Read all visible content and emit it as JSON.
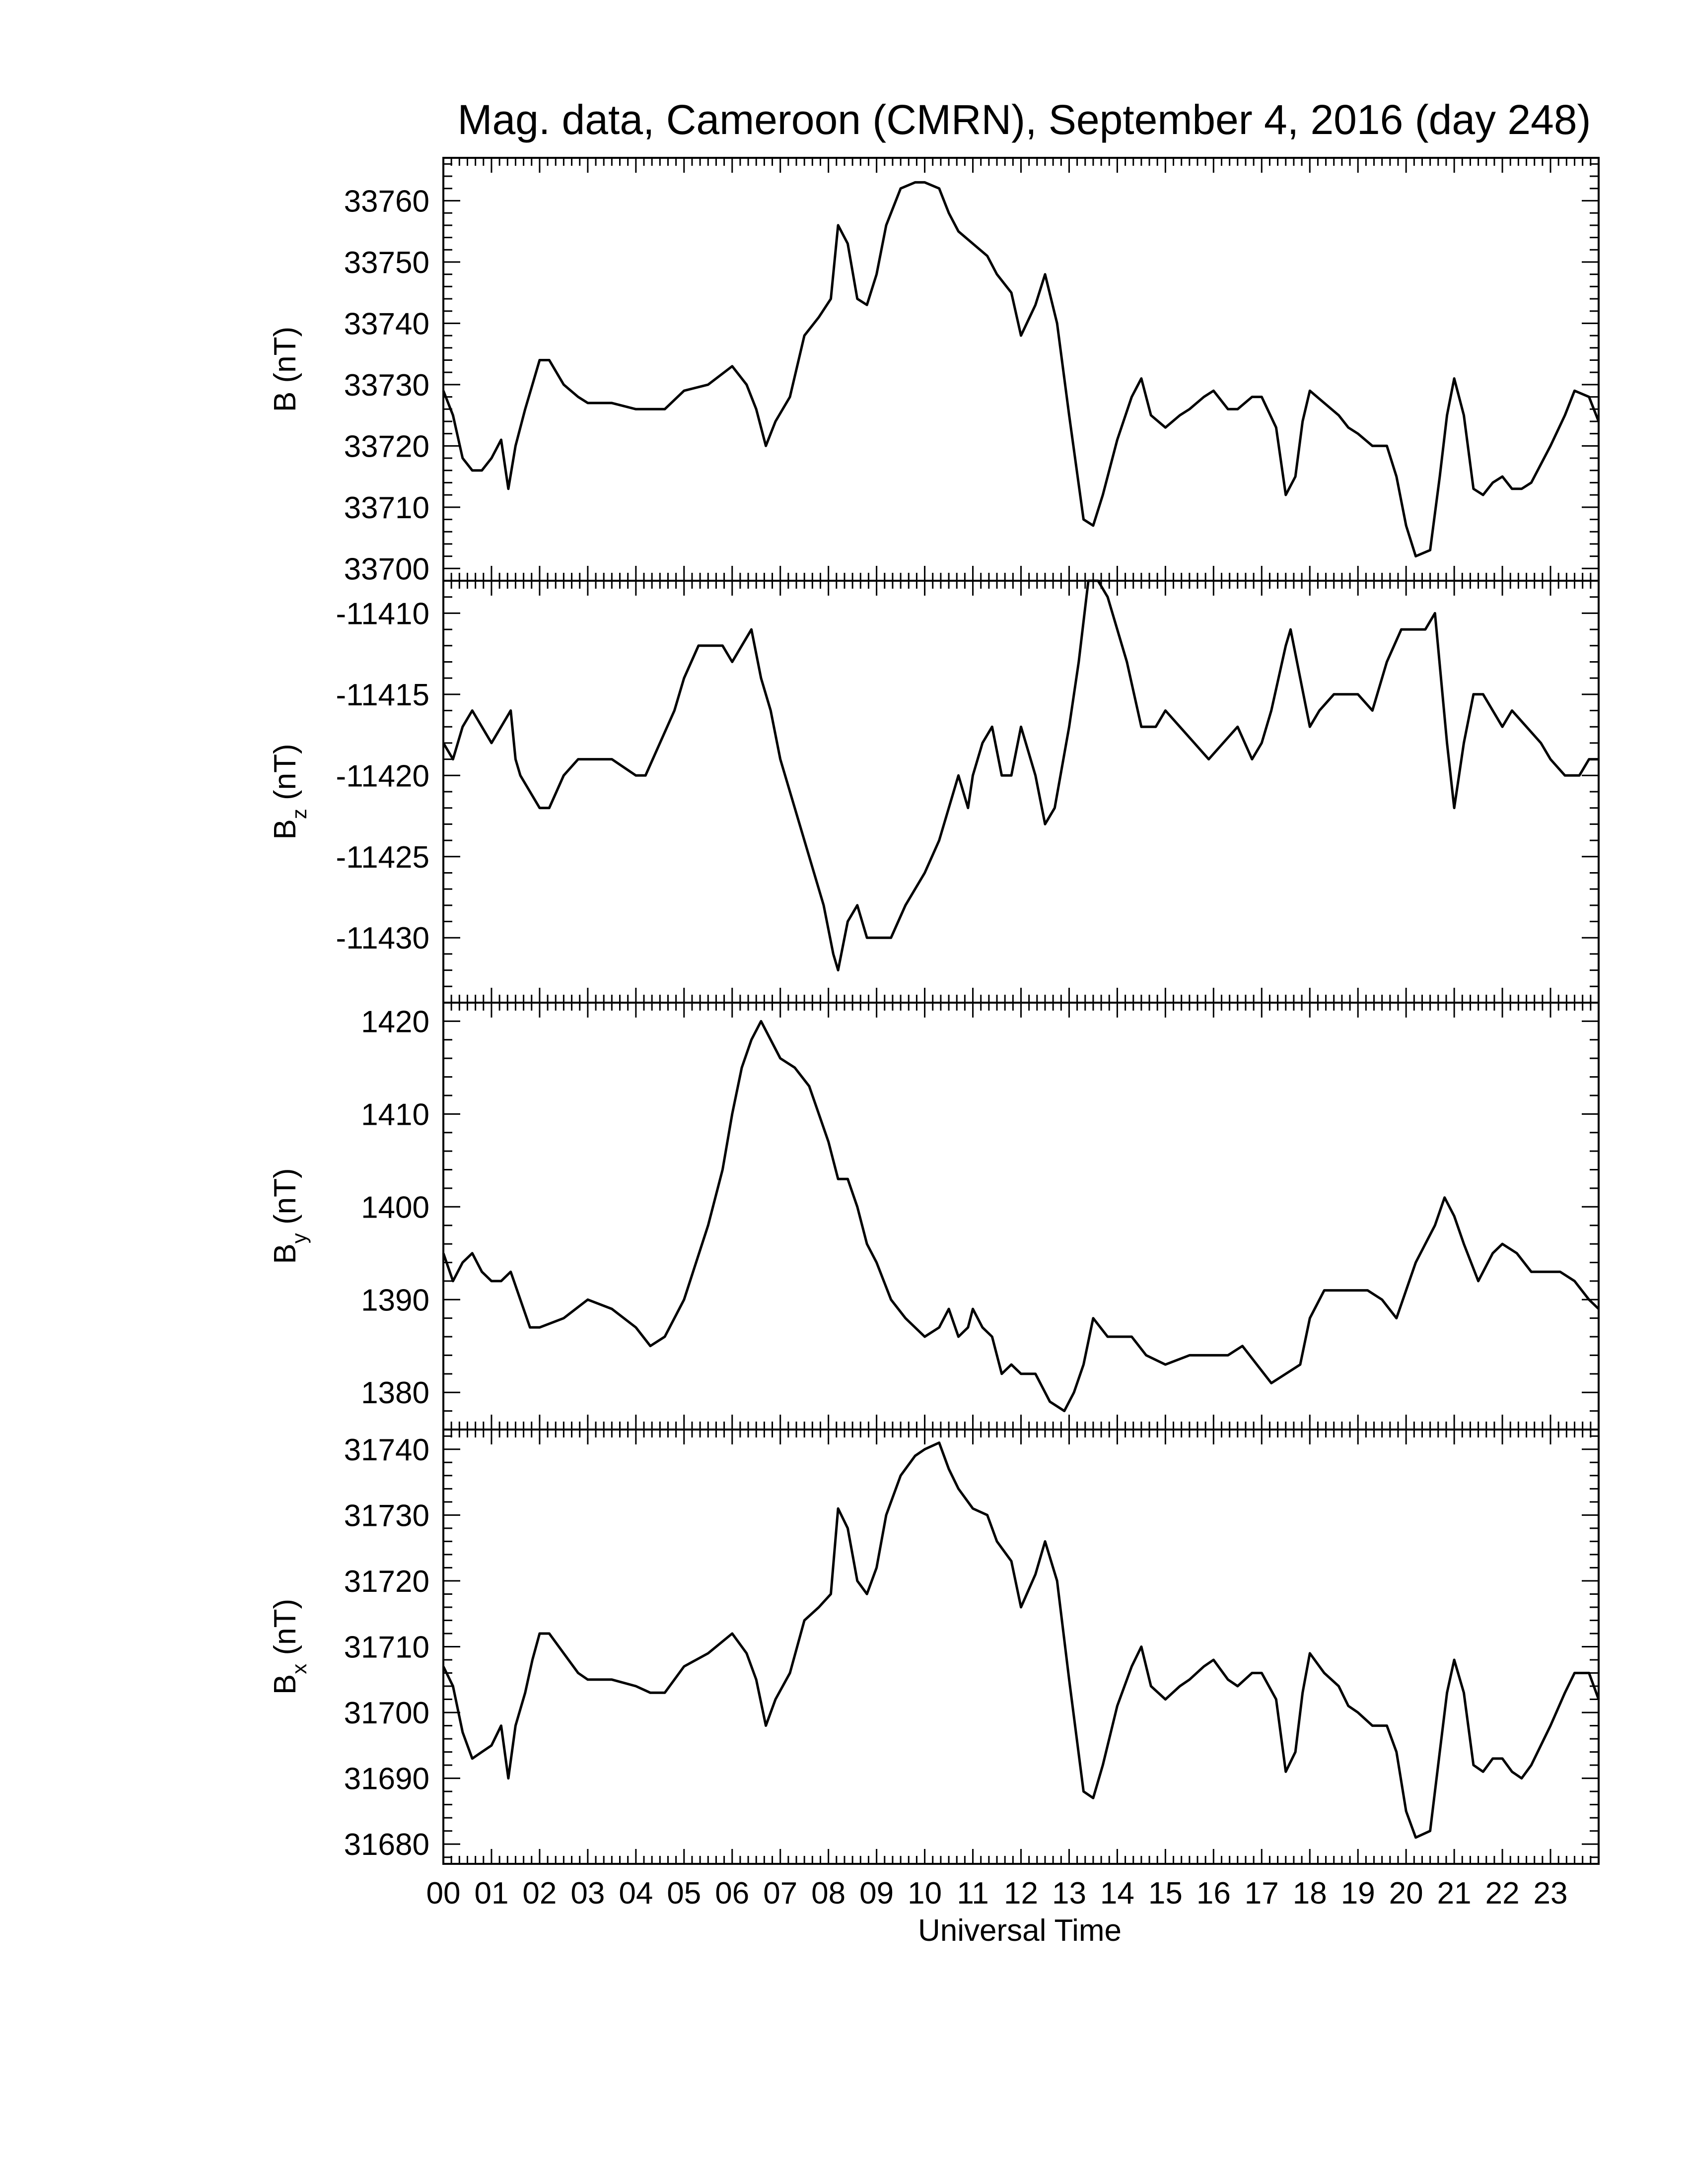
{
  "title": "Mag. data, Cameroon (CMRN), September 4, 2016 (day 248)",
  "xlabel": "Universal Time",
  "x_ticks": [
    "00",
    "01",
    "02",
    "03",
    "04",
    "05",
    "06",
    "07",
    "08",
    "09",
    "10",
    "11",
    "12",
    "13",
    "14",
    "15",
    "16",
    "17",
    "18",
    "19",
    "20",
    "21",
    "22",
    "23"
  ],
  "chart_data": [
    {
      "type": "line",
      "ylabel": "B (nT)",
      "ylim": [
        33698,
        33767
      ],
      "yticks": [
        33700,
        33710,
        33720,
        33730,
        33740,
        33750,
        33760
      ],
      "series": [
        {
          "x": [
            0,
            0.2,
            0.4,
            0.6,
            0.8,
            1.0,
            1.2,
            1.35,
            1.5,
            1.7,
            1.85,
            2.0,
            2.2,
            2.5,
            2.8,
            3.0,
            3.5,
            4.0,
            4.3,
            4.6,
            5.0,
            5.5,
            6.0,
            6.3,
            6.5,
            6.7,
            6.9,
            7.2,
            7.5,
            7.8,
            8.05,
            8.2,
            8.4,
            8.6,
            8.8,
            9.0,
            9.2,
            9.5,
            9.8,
            10.0,
            10.3,
            10.5,
            10.7,
            11.0,
            11.3,
            11.5,
            11.8,
            12.0,
            12.3,
            12.5,
            12.75,
            13.0,
            13.3,
            13.5,
            13.7,
            14.0,
            14.3,
            14.5,
            14.7,
            15.0,
            15.3,
            15.5,
            15.8,
            16.0,
            16.3,
            16.5,
            16.8,
            17.0,
            17.3,
            17.5,
            17.7,
            17.85,
            18.0,
            18.3,
            18.6,
            18.8,
            19.0,
            19.3,
            19.6,
            19.8,
            20.0,
            20.2,
            20.5,
            20.7,
            20.85,
            21.0,
            21.2,
            21.4,
            21.6,
            21.8,
            22.0,
            22.2,
            22.4,
            22.6,
            23.0,
            23.3,
            23.5,
            23.8,
            24.0
          ],
          "values": [
            33729,
            33725,
            33718,
            33716,
            33716,
            33718,
            33721,
            33713,
            33720,
            33726,
            33730,
            33734,
            33734,
            33730,
            33728,
            33727,
            33727,
            33726,
            33726,
            33726,
            33729,
            33730,
            33733,
            33730,
            33726,
            33720,
            33724,
            33728,
            33738,
            33741,
            33744,
            33756,
            33753,
            33744,
            33743,
            33748,
            33756,
            33762,
            33763,
            33763,
            33762,
            33758,
            33755,
            33753,
            33751,
            33748,
            33745,
            33738,
            33743,
            33748,
            33740,
            33725,
            33708,
            33707,
            33712,
            33721,
            33728,
            33731,
            33725,
            33723,
            33725,
            33726,
            33728,
            33729,
            33726,
            33726,
            33728,
            33728,
            33723,
            33712,
            33715,
            33724,
            33729,
            33727,
            33725,
            33723,
            33722,
            33720,
            33720,
            33715,
            33707,
            33702,
            33703,
            33715,
            33725,
            33731,
            33725,
            33713,
            33712,
            33714,
            33715,
            33713,
            33713,
            33714,
            33720,
            33725,
            33729,
            33728,
            33724
          ]
        }
      ]
    },
    {
      "type": "line",
      "ylabel": "B",
      "ylabel_sub": "z",
      "ylabel_unit": "(nT)",
      "ylim": [
        -11434,
        -11408
      ],
      "yticks": [
        -11410,
        -11415,
        -11420,
        -11425,
        -11430
      ],
      "series": [
        {
          "x": [
            0,
            0.2,
            0.4,
            0.6,
            0.8,
            1.0,
            1.2,
            1.4,
            1.5,
            1.6,
            1.8,
            2.0,
            2.2,
            2.5,
            2.8,
            3.0,
            3.5,
            4.0,
            4.2,
            4.5,
            4.8,
            5.0,
            5.3,
            5.5,
            5.8,
            6.0,
            6.2,
            6.4,
            6.6,
            6.8,
            7.0,
            7.3,
            7.6,
            7.9,
            8.1,
            8.2,
            8.4,
            8.6,
            8.8,
            9.0,
            9.3,
            9.6,
            10.0,
            10.3,
            10.5,
            10.7,
            10.9,
            11.0,
            11.2,
            11.4,
            11.6,
            11.8,
            12.0,
            12.3,
            12.5,
            12.7,
            13.0,
            13.2,
            13.4,
            13.6,
            13.8,
            14.0,
            14.2,
            14.5,
            14.8,
            15.0,
            15.3,
            15.6,
            15.9,
            16.2,
            16.5,
            16.8,
            17.0,
            17.2,
            17.5,
            17.6,
            17.8,
            18.0,
            18.2,
            18.5,
            18.8,
            19.0,
            19.3,
            19.6,
            19.9,
            20.2,
            20.4,
            20.6,
            20.85,
            21.0,
            21.2,
            21.4,
            21.6,
            21.8,
            22.0,
            22.2,
            22.5,
            22.8,
            23.0,
            23.3,
            23.6,
            23.8,
            24.0
          ],
          "values": [
            -11418,
            -11419,
            -11417,
            -11416,
            -11417,
            -11418,
            -11417,
            -11416,
            -11419,
            -11420,
            -11421,
            -11422,
            -11422,
            -11420,
            -11419,
            -11419,
            -11419,
            -11420,
            -11420,
            -11418,
            -11416,
            -11414,
            -11412,
            -11412,
            -11412,
            -11413,
            -11412,
            -11411,
            -11414,
            -11416,
            -11419,
            -11422,
            -11425,
            -11428,
            -11431,
            -11432,
            -11429,
            -11428,
            -11430,
            -11430,
            -11430,
            -11428,
            -11426,
            -11424,
            -11422,
            -11420,
            -11422,
            -11420,
            -11418,
            -11417,
            -11420,
            -11420,
            -11417,
            -11420,
            -11423,
            -11422,
            -11417,
            -11413,
            -11408,
            -11408,
            -11409,
            -11411,
            -11413,
            -11417,
            -11417,
            -11416,
            -11417,
            -11418,
            -11419,
            -11418,
            -11417,
            -11419,
            -11418,
            -11416,
            -11412,
            -11411,
            -11414,
            -11417,
            -11416,
            -11415,
            -11415,
            -11415,
            -11416,
            -11413,
            -11411,
            -11411,
            -11411,
            -11410,
            -11418,
            -11422,
            -11418,
            -11415,
            -11415,
            -11416,
            -11417,
            -11416,
            -11417,
            -11418,
            -11419,
            -11420,
            -11420,
            -11419,
            -11419
          ]
        }
      ]
    },
    {
      "type": "line",
      "ylabel": "B",
      "ylabel_sub": "y",
      "ylabel_unit": "(nT)",
      "ylim": [
        1376,
        1422
      ],
      "yticks": [
        1380,
        1390,
        1400,
        1410,
        1420
      ],
      "series": [
        {
          "x": [
            0,
            0.2,
            0.4,
            0.6,
            0.8,
            1.0,
            1.2,
            1.4,
            1.6,
            1.8,
            2.0,
            2.5,
            3.0,
            3.5,
            4.0,
            4.3,
            4.6,
            5.0,
            5.5,
            5.8,
            6.0,
            6.2,
            6.4,
            6.6,
            6.8,
            7.0,
            7.3,
            7.6,
            7.8,
            8.0,
            8.2,
            8.4,
            8.6,
            8.8,
            9.0,
            9.3,
            9.6,
            10.0,
            10.3,
            10.5,
            10.7,
            10.9,
            11.0,
            11.2,
            11.4,
            11.6,
            11.8,
            12.0,
            12.3,
            12.6,
            12.9,
            13.1,
            13.3,
            13.5,
            13.8,
            14.0,
            14.3,
            14.6,
            15.0,
            15.5,
            16.0,
            16.3,
            16.6,
            16.9,
            17.2,
            17.5,
            17.8,
            18.0,
            18.3,
            18.6,
            19.0,
            19.2,
            19.5,
            19.8,
            20.0,
            20.2,
            20.4,
            20.6,
            20.8,
            21.0,
            21.2,
            21.5,
            21.8,
            22.0,
            22.3,
            22.6,
            22.9,
            23.2,
            23.5,
            23.8,
            24.0
          ],
          "values": [
            1395,
            1392,
            1394,
            1395,
            1393,
            1392,
            1392,
            1393,
            1390,
            1387,
            1387,
            1388,
            1390,
            1389,
            1387,
            1385,
            1386,
            1390,
            1398,
            1404,
            1410,
            1415,
            1418,
            1420,
            1418,
            1416,
            1415,
            1413,
            1410,
            1407,
            1403,
            1403,
            1400,
            1396,
            1394,
            1390,
            1388,
            1386,
            1387,
            1389,
            1386,
            1387,
            1389,
            1387,
            1386,
            1382,
            1383,
            1382,
            1382,
            1379,
            1378,
            1380,
            1383,
            1388,
            1386,
            1386,
            1386,
            1384,
            1383,
            1384,
            1384,
            1384,
            1385,
            1383,
            1381,
            1382,
            1383,
            1388,
            1391,
            1391,
            1391,
            1391,
            1390,
            1388,
            1391,
            1394,
            1396,
            1398,
            1401,
            1399,
            1396,
            1392,
            1395,
            1396,
            1395,
            1393,
            1393,
            1393,
            1392,
            1390,
            1389
          ]
        }
      ]
    },
    {
      "type": "line",
      "ylabel": "B",
      "ylabel_sub": "x",
      "ylabel_unit": "(nT)",
      "ylim": [
        31677,
        31743
      ],
      "yticks": [
        31680,
        31690,
        31700,
        31710,
        31720,
        31730,
        31740
      ],
      "series": [
        {
          "x": [
            0,
            0.2,
            0.4,
            0.6,
            0.8,
            1.0,
            1.2,
            1.35,
            1.5,
            1.7,
            1.85,
            2.0,
            2.2,
            2.5,
            2.8,
            3.0,
            3.5,
            4.0,
            4.3,
            4.6,
            5.0,
            5.5,
            6.0,
            6.3,
            6.5,
            6.7,
            6.9,
            7.2,
            7.5,
            7.8,
            8.05,
            8.2,
            8.4,
            8.6,
            8.8,
            9.0,
            9.2,
            9.5,
            9.8,
            10.0,
            10.3,
            10.5,
            10.7,
            11.0,
            11.3,
            11.5,
            11.8,
            12.0,
            12.3,
            12.5,
            12.75,
            13.0,
            13.3,
            13.5,
            13.7,
            14.0,
            14.3,
            14.5,
            14.7,
            15.0,
            15.3,
            15.5,
            15.8,
            16.0,
            16.3,
            16.5,
            16.8,
            17.0,
            17.3,
            17.5,
            17.7,
            17.85,
            18.0,
            18.3,
            18.6,
            18.8,
            19.0,
            19.3,
            19.6,
            19.8,
            20.0,
            20.2,
            20.5,
            20.7,
            20.85,
            21.0,
            21.2,
            21.4,
            21.6,
            21.8,
            22.0,
            22.2,
            22.4,
            22.6,
            23.0,
            23.3,
            23.5,
            23.8,
            24.0
          ],
          "values": [
            31707,
            31704,
            31697,
            31693,
            31694,
            31695,
            31698,
            31690,
            31698,
            31703,
            31708,
            31712,
            31712,
            31709,
            31706,
            31705,
            31705,
            31704,
            31703,
            31703,
            31707,
            31709,
            31712,
            31709,
            31705,
            31698,
            31702,
            31706,
            31714,
            31716,
            31718,
            31731,
            31728,
            31720,
            31718,
            31722,
            31730,
            31736,
            31739,
            31740,
            31741,
            31737,
            31734,
            31731,
            31730,
            31726,
            31723,
            31716,
            31721,
            31726,
            31720,
            31705,
            31688,
            31687,
            31692,
            31701,
            31707,
            31710,
            31704,
            31702,
            31704,
            31705,
            31707,
            31708,
            31705,
            31704,
            31706,
            31706,
            31702,
            31691,
            31694,
            31703,
            31709,
            31706,
            31704,
            31701,
            31700,
            31698,
            31698,
            31694,
            31685,
            31681,
            31682,
            31694,
            31703,
            31708,
            31703,
            31692,
            31691,
            31693,
            31693,
            31691,
            31690,
            31692,
            31698,
            31703,
            31706,
            31706,
            31702
          ]
        }
      ]
    }
  ]
}
